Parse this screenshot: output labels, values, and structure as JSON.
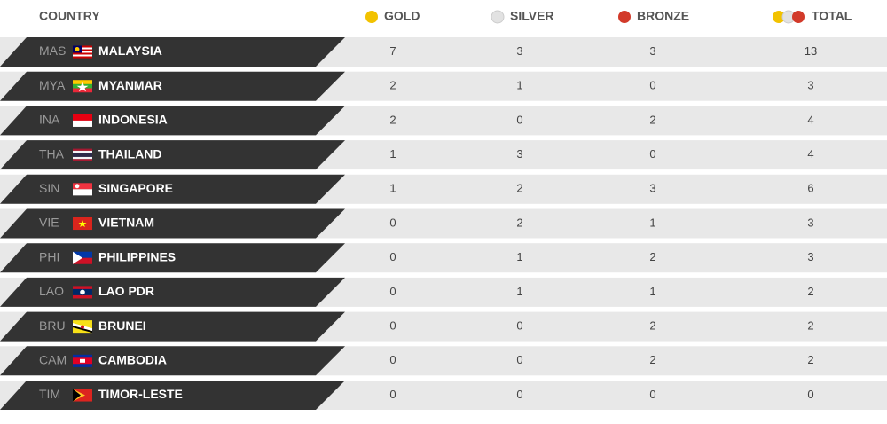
{
  "table": {
    "header": [
      "COUNTRY",
      "GOLD",
      "SILVER",
      "BRONZE",
      "TOTAL"
    ],
    "rows": [
      [
        "MAS",
        "MALAYSIA",
        7,
        3,
        3,
        13
      ],
      [
        "MYA",
        "MYANMAR",
        2,
        1,
        0,
        3
      ],
      [
        "INA",
        "INDONESIA",
        2,
        0,
        2,
        4
      ],
      [
        "THA",
        "THAILAND",
        1,
        3,
        0,
        4
      ],
      [
        "SIN",
        "SINGAPORE",
        1,
        2,
        3,
        6
      ],
      [
        "VIE",
        "VIETNAM",
        0,
        2,
        1,
        3
      ],
      [
        "PHI",
        "PHILIPPINES",
        0,
        1,
        2,
        3
      ],
      [
        "LAO",
        "LAO PDR",
        0,
        1,
        1,
        2
      ],
      [
        "BRU",
        "BRUNEI",
        0,
        0,
        2,
        2
      ],
      [
        "CAM",
        "CAMBODIA",
        0,
        0,
        2,
        2
      ],
      [
        "TIM",
        "TIMOR-LESTE",
        0,
        0,
        0,
        0
      ]
    ]
  }
}
